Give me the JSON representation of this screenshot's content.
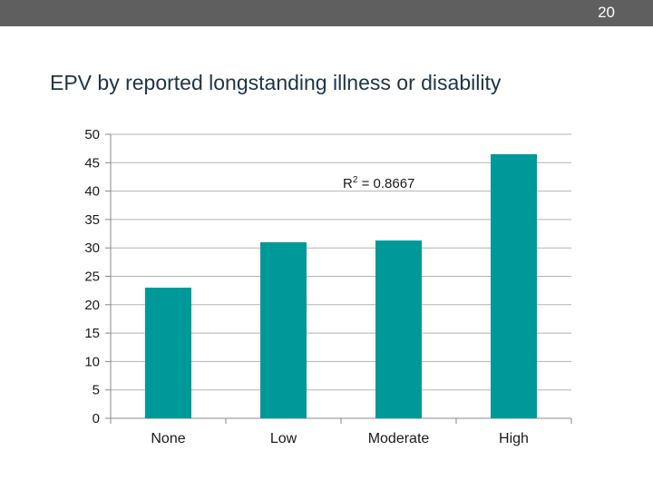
{
  "slide": {
    "number": "20",
    "title": "EPV by reported longstanding illness or disability"
  },
  "chart_data": {
    "type": "bar",
    "title": "EPV by reported longstanding illness or disability",
    "categories": [
      "None",
      "Low",
      "Moderate",
      "High"
    ],
    "values": [
      23,
      31,
      31.3,
      46.5
    ],
    "ylim": [
      0,
      50
    ],
    "yticks": [
      0,
      5,
      10,
      15,
      20,
      25,
      30,
      35,
      40,
      45,
      50
    ],
    "xlabel": "",
    "ylabel": "",
    "grid": true,
    "bar_color": "#009999",
    "annotation": {
      "base": "R",
      "sup": "2",
      "rest": " = 0.8667"
    }
  },
  "colors": {
    "topbar": "#5f5f5f",
    "gridline": "#b3b3b3",
    "title": "#1f3346"
  }
}
